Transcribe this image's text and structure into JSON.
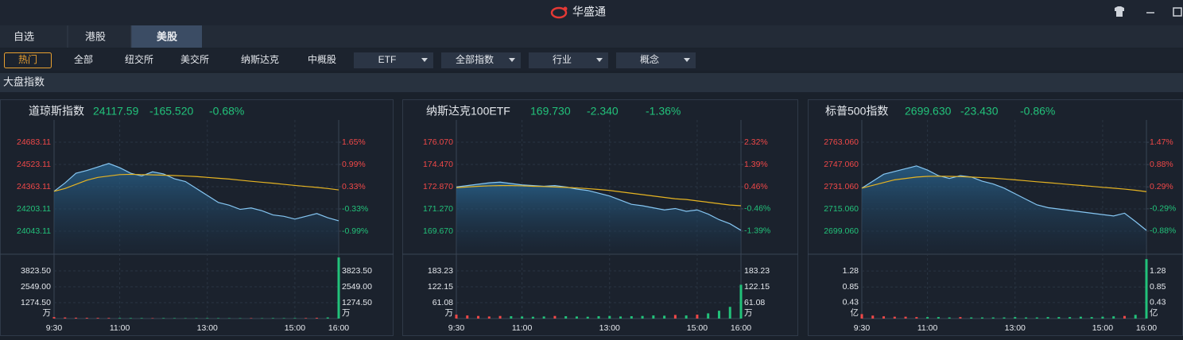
{
  "app": {
    "title": "华盛通"
  },
  "tabs": [
    "自选",
    "港股",
    "美股"
  ],
  "filters": [
    "热门",
    "全部",
    "纽交所",
    "美交所",
    "纳斯达克",
    "中概股"
  ],
  "dropdowns": [
    "ETF",
    "全部指数",
    "行业",
    "概念"
  ],
  "section_title": "大盘指数",
  "chart_data": [
    {
      "type": "line",
      "title": "道琼斯指数",
      "price": "24117.59",
      "change": "-165.520",
      "change_pct": "-0.68%",
      "up_color": "#f04848",
      "down_color": "#22c27a",
      "x": [
        0,
        15,
        30,
        45,
        60,
        75,
        90,
        105,
        120,
        135,
        150,
        165,
        180,
        195,
        210,
        225,
        240,
        255,
        270,
        285,
        300,
        315,
        330,
        345,
        360,
        375,
        390
      ],
      "xlim": [
        0,
        390
      ],
      "xticks": [
        {
          "value": 0,
          "label": "9:30"
        },
        {
          "value": 90,
          "label": "11:00"
        },
        {
          "value": 210,
          "label": "13:00"
        },
        {
          "value": 330,
          "label": "15:00"
        },
        {
          "value": 390,
          "label": "16:00"
        }
      ],
      "ylim": [
        23883.11,
        24843.11
      ],
      "yticks": [
        24043.11,
        24203.11,
        24363.11,
        24523.11,
        24683.11
      ],
      "y2lim": [
        -1.65,
        2.31
      ],
      "y2ticks": [
        {
          "value": -0.99,
          "label": "-0.99%"
        },
        {
          "value": -0.33,
          "label": "-0.33%"
        },
        {
          "value": 0.33,
          "label": "0.33%"
        },
        {
          "value": 0.99,
          "label": "0.99%"
        },
        {
          "value": 1.65,
          "label": "1.65%"
        }
      ],
      "series": [
        {
          "color": "#86c6f2",
          "values": [
            24330,
            24390,
            24460,
            24480,
            24505,
            24530,
            24500,
            24460,
            24440,
            24470,
            24455,
            24420,
            24400,
            24350,
            24300,
            24250,
            24230,
            24200,
            24210,
            24190,
            24160,
            24150,
            24130,
            24150,
            24170,
            24140,
            24117.59
          ]
        },
        {
          "color": "#e6b422",
          "values": [
            24330,
            24350,
            24380,
            24410,
            24430,
            24440,
            24450,
            24452,
            24450,
            24448,
            24446,
            24443,
            24440,
            24436,
            24430,
            24424,
            24418,
            24410,
            24402,
            24395,
            24388,
            24380,
            24372,
            24365,
            24358,
            24350,
            24340
          ]
        }
      ],
      "volume": {
        "unit": "万",
        "ylim": [
          0,
          5098
        ],
        "yticks": [
          {
            "value": 1274.5,
            "label": "1274.50"
          },
          {
            "value": 2549,
            "label": "2549.00"
          },
          {
            "value": 3823.5,
            "label": "3823.50"
          }
        ],
        "values": [
          120,
          90,
          70,
          60,
          55,
          50,
          45,
          40,
          40,
          35,
          40,
          35,
          30,
          35,
          40,
          35,
          30,
          30,
          35,
          30,
          40,
          35,
          40,
          45,
          60,
          90,
          4900
        ]
      }
    },
    {
      "type": "line",
      "title": "纳斯达克100ETF",
      "price": "169.730",
      "change": "-2.340",
      "change_pct": "-1.36%",
      "up_color": "#f04848",
      "down_color": "#22c27a",
      "x": [
        0,
        15,
        30,
        45,
        60,
        75,
        90,
        105,
        120,
        135,
        150,
        165,
        180,
        195,
        210,
        225,
        240,
        255,
        270,
        285,
        300,
        315,
        330,
        345,
        360,
        375,
        390
      ],
      "xlim": [
        0,
        390
      ],
      "xticks": [
        {
          "value": 0,
          "label": "9:30"
        },
        {
          "value": 90,
          "label": "11:00"
        },
        {
          "value": 210,
          "label": "13:00"
        },
        {
          "value": 330,
          "label": "15:00"
        },
        {
          "value": 390,
          "label": "16:00"
        }
      ],
      "ylim": [
        168.07,
        177.67
      ],
      "yticks": [
        {
          "value": 169.67,
          "label": "169.670"
        },
        {
          "value": 171.27,
          "label": "171.270"
        },
        {
          "value": 172.87,
          "label": "172.870"
        },
        {
          "value": 174.47,
          "label": "174.470"
        },
        {
          "value": 176.07,
          "label": "176.070"
        }
      ],
      "y2lim": [
        -2.32,
        3.25
      ],
      "y2ticks": [
        {
          "value": -1.39,
          "label": "-1.39%"
        },
        {
          "value": -0.46,
          "label": "-0.46%"
        },
        {
          "value": 0.46,
          "label": "0.46%"
        },
        {
          "value": 1.39,
          "label": "1.39%"
        },
        {
          "value": 2.32,
          "label": "2.32%"
        }
      ],
      "series": [
        {
          "color": "#86c6f2",
          "values": [
            172.85,
            172.95,
            173.05,
            173.15,
            173.2,
            173.1,
            173.0,
            172.95,
            172.9,
            172.95,
            172.85,
            172.7,
            172.6,
            172.4,
            172.2,
            171.9,
            171.6,
            171.5,
            171.35,
            171.2,
            171.3,
            171.1,
            171.2,
            170.9,
            170.5,
            170.2,
            169.73
          ]
        },
        {
          "color": "#e6b422",
          "values": [
            172.8,
            172.85,
            172.9,
            172.93,
            172.95,
            172.95,
            172.93,
            172.9,
            172.88,
            172.85,
            172.82,
            172.78,
            172.73,
            172.67,
            172.6,
            172.5,
            172.4,
            172.3,
            172.2,
            172.1,
            172.0,
            171.95,
            171.85,
            171.75,
            171.65,
            171.55,
            171.5
          ]
        }
      ],
      "volume": {
        "unit": "万",
        "ylim": [
          0,
          244.31
        ],
        "yticks": [
          61.08,
          122.15,
          183.23
        ],
        "values": [
          15,
          12,
          10,
          8,
          10,
          9,
          8,
          7,
          8,
          10,
          9,
          8,
          7,
          9,
          10,
          8,
          9,
          10,
          12,
          11,
          14,
          12,
          15,
          20,
          30,
          45,
          130
        ]
      }
    },
    {
      "type": "line",
      "title": "标普500指数",
      "price": "2699.630",
      "change": "-23.430",
      "change_pct": "-0.86%",
      "up_color": "#f04848",
      "down_color": "#22c27a",
      "x": [
        0,
        15,
        30,
        45,
        60,
        75,
        90,
        105,
        120,
        135,
        150,
        165,
        180,
        195,
        210,
        225,
        240,
        255,
        270,
        285,
        300,
        315,
        330,
        345,
        360,
        375,
        390
      ],
      "xlim": [
        0,
        390
      ],
      "xticks": [
        {
          "value": 0,
          "label": "9:30"
        },
        {
          "value": 90,
          "label": "11:00"
        },
        {
          "value": 210,
          "label": "13:00"
        },
        {
          "value": 330,
          "label": "15:00"
        },
        {
          "value": 390,
          "label": "16:00"
        }
      ],
      "ylim": [
        2683.06,
        2779.06
      ],
      "yticks": [
        {
          "value": 2699.06,
          "label": "2699.060"
        },
        {
          "value": 2715.06,
          "label": "2715.060"
        },
        {
          "value": 2731.06,
          "label": "2731.060"
        },
        {
          "value": 2747.06,
          "label": "2747.060"
        },
        {
          "value": 2763.06,
          "label": "2763.060"
        }
      ],
      "y2lim": [
        -1.47,
        2.06
      ],
      "y2ticks": [
        {
          "value": -0.88,
          "label": "-0.88%"
        },
        {
          "value": -0.29,
          "label": "-0.29%"
        },
        {
          "value": 0.29,
          "label": "0.29%"
        },
        {
          "value": 0.88,
          "label": "0.88%"
        },
        {
          "value": 1.47,
          "label": "1.47%"
        }
      ],
      "series": [
        {
          "color": "#86c6f2",
          "values": [
            2730,
            2735,
            2740,
            2742,
            2744,
            2746,
            2743,
            2739,
            2737,
            2739,
            2738,
            2735,
            2733,
            2730,
            2726,
            2722,
            2718,
            2716,
            2715,
            2714,
            2713,
            2712,
            2711,
            2710,
            2712,
            2706,
            2699.63
          ]
        },
        {
          "color": "#e6b422",
          "values": [
            2730,
            2732,
            2734,
            2736,
            2737,
            2738,
            2738.5,
            2738.6,
            2738.5,
            2738.3,
            2738,
            2737.6,
            2737.2,
            2736.6,
            2736,
            2735.3,
            2734.6,
            2734,
            2733.3,
            2732.6,
            2732,
            2731.3,
            2730.6,
            2730,
            2729.3,
            2728.5,
            2727.5
          ]
        }
      ],
      "volume": {
        "unit": "亿",
        "ylim": [
          0,
          1.71
        ],
        "yticks": [
          0.43,
          0.85,
          1.28
        ],
        "values": [
          0.12,
          0.08,
          0.06,
          0.05,
          0.05,
          0.04,
          0.04,
          0.04,
          0.03,
          0.04,
          0.03,
          0.03,
          0.03,
          0.03,
          0.04,
          0.03,
          0.03,
          0.04,
          0.04,
          0.04,
          0.05,
          0.04,
          0.05,
          0.06,
          0.07,
          0.1,
          1.6
        ]
      }
    }
  ]
}
